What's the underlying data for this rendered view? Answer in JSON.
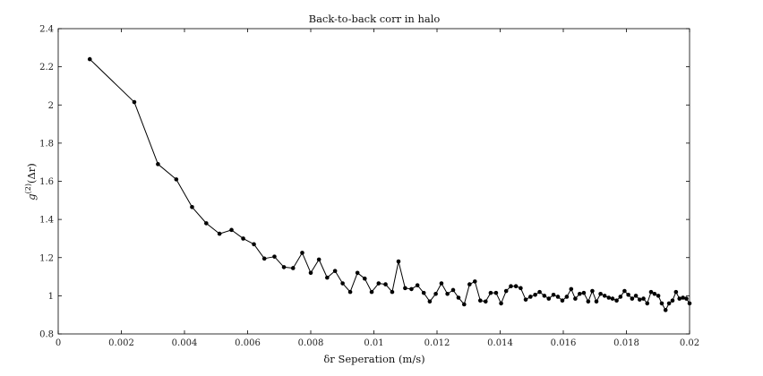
{
  "chart_data": {
    "type": "line",
    "title": "Back-to-back corr in halo",
    "xlabel": "δr Seperation (m/s)",
    "ylabel_main": "g",
    "ylabel_sup": "(2)",
    "ylabel_rest": "(Δr)",
    "xlim": [
      0,
      0.02
    ],
    "ylim": [
      0.8,
      2.4
    ],
    "xticks": [
      0,
      0.002,
      0.004,
      0.006,
      0.008,
      0.01,
      0.012,
      0.014,
      0.016,
      0.018,
      0.02
    ],
    "xtick_labels": [
      "0",
      "0.002",
      "0.004",
      "0.006",
      "0.008",
      "0.01",
      "0.012",
      "0.014",
      "0.016",
      "0.018",
      "0.02"
    ],
    "yticks": [
      0.8,
      1.0,
      1.2,
      1.4,
      1.6,
      1.8,
      2.0,
      2.2,
      2.4
    ],
    "ytick_labels": [
      "0.8",
      "1",
      "1.2",
      "1.4",
      "1.6",
      "1.8",
      "2",
      "2.2",
      "2.4"
    ],
    "grid": false,
    "series": [
      {
        "color": "#000000",
        "marker": "dot",
        "x": [
          0.001,
          0.00241,
          0.00316,
          0.00374,
          0.00424,
          0.00469,
          0.00511,
          0.00549,
          0.00586,
          0.0062,
          0.00653,
          0.00685,
          0.00715,
          0.00744,
          0.00773,
          0.008,
          0.00826,
          0.00852,
          0.00877,
          0.00901,
          0.00925,
          0.00948,
          0.00971,
          0.00993,
          0.01015,
          0.01037,
          0.01058,
          0.01078,
          0.01099,
          0.01119,
          0.01138,
          0.01158,
          0.01177,
          0.01196,
          0.01214,
          0.01233,
          0.01251,
          0.01268,
          0.01286,
          0.01303,
          0.0132,
          0.01337,
          0.01354,
          0.0137,
          0.01387,
          0.01403,
          0.01419,
          0.01434,
          0.0145,
          0.01465,
          0.01481,
          0.01496,
          0.01511,
          0.01525,
          0.0154,
          0.01554,
          0.01569,
          0.01583,
          0.01597,
          0.01611,
          0.01625,
          0.01638,
          0.01652,
          0.01665,
          0.01679,
          0.01692,
          0.01705,
          0.01718,
          0.01731,
          0.01744,
          0.01756,
          0.01769,
          0.01781,
          0.01794,
          0.01806,
          0.01818,
          0.0183,
          0.01842,
          0.01854,
          0.01866,
          0.01878,
          0.01889,
          0.01901,
          0.01912,
          0.01924,
          0.01935,
          0.01946,
          0.01957,
          0.01968,
          0.01979,
          0.0199,
          0.02
        ],
        "y": [
          2.24,
          2.015,
          1.69,
          1.61,
          1.465,
          1.38,
          1.325,
          1.345,
          1.3,
          1.27,
          1.195,
          1.205,
          1.15,
          1.145,
          1.225,
          1.12,
          1.19,
          1.095,
          1.13,
          1.065,
          1.02,
          1.12,
          1.09,
          1.02,
          1.065,
          1.06,
          1.02,
          1.18,
          1.04,
          1.035,
          1.055,
          1.015,
          0.97,
          1.01,
          1.065,
          1.01,
          1.03,
          0.99,
          0.955,
          1.06,
          1.075,
          0.975,
          0.97,
          1.015,
          1.015,
          0.96,
          1.025,
          1.05,
          1.05,
          1.04,
          0.98,
          0.995,
          1.005,
          1.02,
          1.0,
          0.985,
          1.005,
          0.995,
          0.975,
          0.995,
          1.035,
          0.985,
          1.01,
          1.015,
          0.97,
          1.025,
          0.97,
          1.01,
          1.0,
          0.99,
          0.985,
          0.975,
          0.995,
          1.025,
          1.005,
          0.985,
          1.0,
          0.98,
          0.985,
          0.96,
          1.02,
          1.01,
          1.0,
          0.96,
          0.925,
          0.96,
          0.975,
          1.02,
          0.985,
          0.99,
          0.985,
          0.96
        ]
      }
    ]
  }
}
